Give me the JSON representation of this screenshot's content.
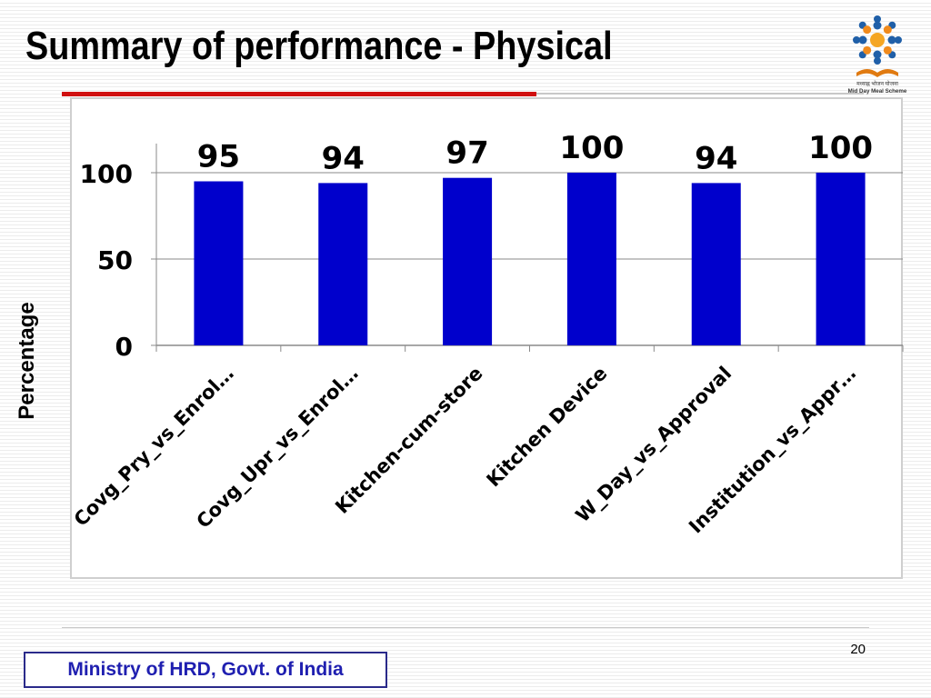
{
  "slide": {
    "title": "Summary of performance - Physical",
    "footer_org": "Ministry of HRD, Govt. of India",
    "page_number": "20"
  },
  "logo": {
    "caption_hindi": "मध्याह्न भोजन योजना",
    "caption_english": "Mid Day Meal Scheme",
    "colors": {
      "figures": "#1f5fa8",
      "center": "#f5a623",
      "book": "#e07a10"
    }
  },
  "chart_data": {
    "type": "bar",
    "title": "",
    "xlabel": "",
    "ylabel": "Percentage",
    "ylim": [
      0,
      100
    ],
    "yticks": [
      0,
      50,
      100
    ],
    "categories": [
      "Covg_Pry_vs_Enrol…",
      "Covg_Upr_vs_Enrol…",
      "Kitchen-cum-store",
      "Kitchen Device",
      "W_Day_vs_Approval",
      "Institution_vs_Appr…"
    ],
    "values": [
      95,
      94,
      97,
      100,
      94,
      100
    ],
    "data_labels": [
      "95",
      "94",
      "97",
      "100",
      "94",
      "100"
    ],
    "grid": true,
    "legend": "none",
    "bar_color": "#0000cc"
  }
}
